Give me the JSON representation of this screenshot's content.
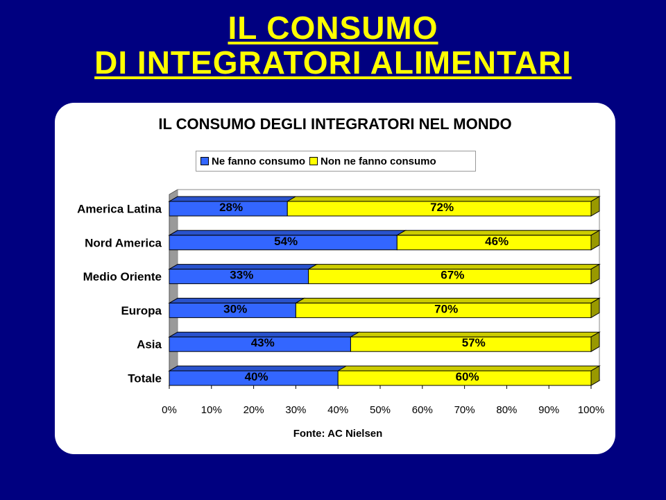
{
  "slide": {
    "title_line1": "IL CONSUMO",
    "title_line2": "DI INTEGRATORI ALIMENTARI"
  },
  "colors": {
    "background": "#000080",
    "title": "#ffff00",
    "series_1": "#3366ff",
    "series_2": "#ffff00"
  },
  "chart_data": {
    "type": "bar",
    "orientation": "horizontal",
    "stacked": "100%",
    "title": "IL CONSUMO DEGLI INTEGRATORI NEL MONDO",
    "categories": [
      "America Latina",
      "Nord America",
      "Medio Oriente",
      "Europa",
      "Asia",
      "Totale"
    ],
    "series": [
      {
        "name": "Ne fanno consumo",
        "values": [
          28,
          54,
          33,
          30,
          43,
          40
        ],
        "labels": [
          "28%",
          "54%",
          "33%",
          "30%",
          "43%",
          "40%"
        ]
      },
      {
        "name": "Non ne fanno consumo",
        "values": [
          72,
          46,
          67,
          70,
          57,
          60
        ],
        "labels": [
          "72%",
          "46%",
          "67%",
          "70%",
          "57%",
          "60%"
        ]
      }
    ],
    "xlim": [
      0,
      100
    ],
    "x_ticks": [
      "0%",
      "10%",
      "20%",
      "30%",
      "40%",
      "50%",
      "60%",
      "70%",
      "80%",
      "90%",
      "100%"
    ],
    "legend_position": "top",
    "grid": false,
    "source": "Fonte: AC Nielsen"
  }
}
